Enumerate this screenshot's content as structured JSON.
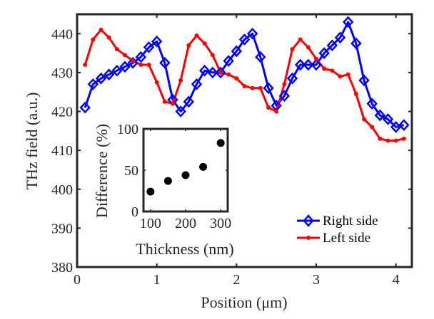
{
  "chart_data": [
    {
      "type": "line",
      "title": "",
      "xlabel": "Position (μm)",
      "ylabel": "THz field (a.u.)",
      "xlim": [
        0,
        4.2
      ],
      "ylim": [
        380,
        445
      ],
      "xticks": [
        0,
        1,
        2,
        3,
        4
      ],
      "xtick_labels": [
        "0",
        "1",
        "2",
        "3",
        "4"
      ],
      "yticks": [
        380,
        390,
        400,
        410,
        420,
        430,
        440
      ],
      "ytick_labels": [
        "380",
        "390",
        "400",
        "410",
        "420",
        "430",
        "440"
      ],
      "grid": false,
      "legend_position": "bottom-right",
      "x": [
        0.1,
        0.2,
        0.3,
        0.4,
        0.5,
        0.6,
        0.7,
        0.8,
        0.9,
        1.0,
        1.1,
        1.2,
        1.3,
        1.4,
        1.5,
        1.6,
        1.7,
        1.8,
        1.9,
        2.0,
        2.1,
        2.2,
        2.3,
        2.4,
        2.5,
        2.6,
        2.7,
        2.8,
        2.9,
        3.0,
        3.1,
        3.2,
        3.3,
        3.4,
        3.5,
        3.6,
        3.7,
        3.8,
        3.9,
        4.0,
        4.1
      ],
      "series": [
        {
          "name": "Right side",
          "color": "#0000ff",
          "marker": "diamond",
          "values": [
            421,
            427,
            428.5,
            429.5,
            430.5,
            431.5,
            432.5,
            434,
            436.5,
            438,
            432.5,
            423,
            420,
            422.5,
            427,
            430.5,
            430,
            430,
            433,
            435.5,
            438.5,
            440,
            434,
            426,
            421.5,
            424,
            428.5,
            432,
            432,
            432,
            435,
            437,
            439,
            443,
            437.5,
            428,
            422,
            419,
            418,
            416,
            416.5
          ]
        },
        {
          "name": "Left side",
          "color": "#ff0000",
          "marker": "dot",
          "values": [
            432,
            438.5,
            441,
            439,
            436,
            434.5,
            433,
            432,
            432,
            427.5,
            422.5,
            422,
            428,
            437,
            439.5,
            437.5,
            434.5,
            430,
            429.5,
            428.5,
            426.5,
            426,
            426,
            421,
            420,
            427,
            436,
            438.5,
            436.5,
            433.5,
            431,
            430.5,
            429,
            429.5,
            424.5,
            418,
            416,
            413,
            412.5,
            412.5,
            413
          ]
        }
      ]
    },
    {
      "type": "scatter",
      "title": "",
      "xlabel": "Thickness (nm)",
      "ylabel": "Difference (%)",
      "xlim": [
        80,
        320
      ],
      "ylim": [
        0,
        100
      ],
      "xticks": [
        100,
        200,
        300
      ],
      "xtick_labels": [
        "100",
        "200",
        "300"
      ],
      "yticks": [
        0,
        50,
        100
      ],
      "ytick_labels": [
        "0",
        "50",
        "100"
      ],
      "grid": false,
      "series": [
        {
          "name": "Difference",
          "color": "#000000",
          "x": [
            100,
            150,
            200,
            250,
            300
          ],
          "values": [
            24,
            37,
            44,
            54,
            83
          ]
        }
      ]
    }
  ]
}
